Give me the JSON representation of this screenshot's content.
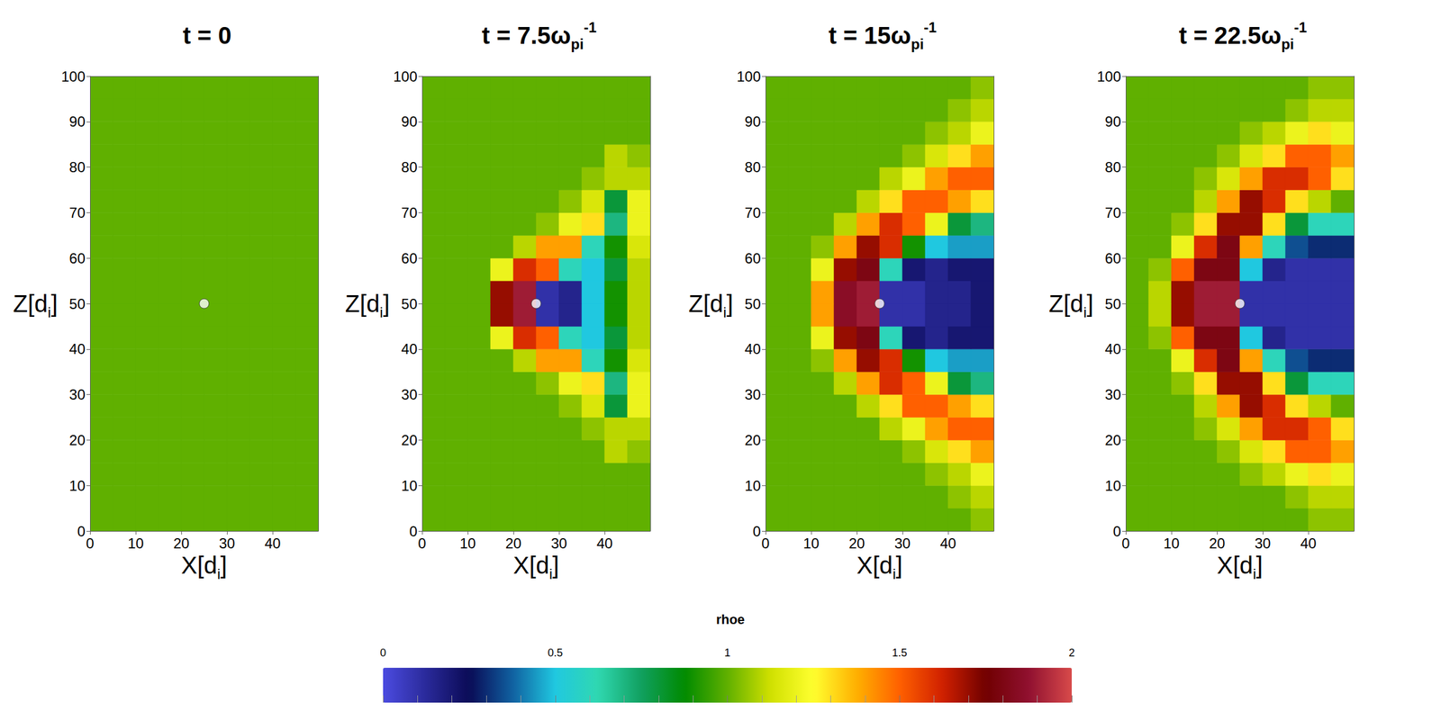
{
  "chart_data": [
    {
      "type": "heatmap",
      "title": {
        "text": "t = 0"
      },
      "x_label": {
        "text": "X[d",
        "sub": "i",
        "after": "]"
      },
      "y_label": {
        "text": "Z[d",
        "sub": "i",
        "after": "]"
      },
      "xlim": [
        0,
        50
      ],
      "xticks": [
        0,
        10,
        20,
        30,
        40
      ],
      "ylim": [
        0,
        100
      ],
      "yticks": [
        0,
        10,
        20,
        30,
        40,
        50,
        60,
        70,
        80,
        90,
        100
      ],
      "x_bins": [
        0,
        5,
        10,
        15,
        20,
        25,
        30,
        35,
        40,
        45,
        50
      ],
      "z_bins": [
        0,
        5,
        10,
        15,
        20,
        25,
        30,
        35,
        40,
        45,
        50,
        55,
        60,
        65,
        70,
        75,
        80,
        85,
        90,
        95,
        100
      ],
      "values": [
        [
          1,
          1,
          1,
          1,
          1,
          1,
          1,
          1,
          1,
          1
        ],
        [
          1,
          1,
          1,
          1,
          1,
          1,
          1,
          1,
          1,
          1
        ],
        [
          1,
          1,
          1,
          1,
          1,
          1,
          1,
          1,
          1,
          1
        ],
        [
          1,
          1,
          1,
          1,
          1,
          1,
          1,
          1,
          1,
          1
        ],
        [
          1,
          1,
          1,
          1,
          1,
          1,
          1,
          1,
          1,
          1
        ],
        [
          1,
          1,
          1,
          1,
          1,
          1,
          1,
          1,
          1,
          1
        ],
        [
          1,
          1,
          1,
          1,
          1,
          1,
          1,
          1,
          1,
          1
        ],
        [
          1,
          1,
          1,
          1,
          1,
          1,
          1,
          1,
          1,
          1
        ],
        [
          1,
          1,
          1,
          1,
          1,
          1,
          1,
          1,
          1,
          1
        ],
        [
          1,
          1,
          1,
          1,
          1,
          1,
          1,
          1,
          1,
          1
        ],
        [
          1,
          1,
          1,
          1,
          1,
          1,
          1,
          1,
          1,
          1
        ],
        [
          1,
          1,
          1,
          1,
          1,
          1,
          1,
          1,
          1,
          1
        ],
        [
          1,
          1,
          1,
          1,
          1,
          1,
          1,
          1,
          1,
          1
        ],
        [
          1,
          1,
          1,
          1,
          1,
          1,
          1,
          1,
          1,
          1
        ],
        [
          1,
          1,
          1,
          1,
          1,
          1,
          1,
          1,
          1,
          1
        ],
        [
          1,
          1,
          1,
          1,
          1,
          1,
          1,
          1,
          1,
          1
        ],
        [
          1,
          1,
          1,
          1,
          1,
          1,
          1,
          1,
          1,
          1
        ],
        [
          1,
          1,
          1,
          1,
          1,
          1,
          1,
          1,
          1,
          1
        ],
        [
          1,
          1,
          1,
          1,
          1,
          1,
          1,
          1,
          1,
          1
        ],
        [
          1,
          1,
          1,
          1,
          1,
          1,
          1,
          1,
          1,
          1
        ]
      ],
      "obstacle": {
        "x": 25,
        "z": 50
      }
    },
    {
      "type": "heatmap",
      "title": {
        "text": "t = 7.5ω",
        "sub": "pi",
        "sup": "-1"
      },
      "x_label": {
        "text": "X[d",
        "sub": "i",
        "after": "]"
      },
      "y_label": {
        "text": "Z[d",
        "sub": "i",
        "after": "]"
      },
      "xlim": [
        0,
        50
      ],
      "xticks": [
        0,
        10,
        20,
        30,
        40
      ],
      "ylim": [
        0,
        100
      ],
      "yticks": [
        0,
        10,
        20,
        30,
        40,
        50,
        60,
        70,
        80,
        90,
        100
      ],
      "x_bins": [
        0,
        5,
        10,
        15,
        20,
        25,
        30,
        35,
        40,
        45,
        50
      ],
      "z_bins": [
        0,
        5,
        10,
        15,
        20,
        25,
        30,
        35,
        40,
        45,
        50,
        55,
        60,
        65,
        70,
        75,
        80,
        85,
        90,
        95,
        100
      ],
      "values": [
        [
          1,
          1,
          1,
          1,
          1,
          1,
          1,
          1,
          1,
          1
        ],
        [
          1,
          1,
          1,
          1,
          1,
          1,
          1,
          1,
          1,
          1
        ],
        [
          1,
          1,
          1,
          1,
          1,
          1,
          1,
          1,
          1,
          1
        ],
        [
          1,
          1,
          1,
          1,
          1,
          1,
          1,
          1,
          1.1,
          1.05
        ],
        [
          1,
          1,
          1,
          1,
          1,
          1,
          1,
          1.05,
          1.1,
          1.1
        ],
        [
          1,
          1,
          1,
          1,
          1,
          1,
          1.05,
          1.15,
          0.8,
          1.2
        ],
        [
          1,
          1,
          1,
          1,
          1,
          1.05,
          1.2,
          1.3,
          0.7,
          1.2
        ],
        [
          1,
          1,
          1,
          1,
          1.1,
          1.4,
          1.4,
          0.6,
          0.9,
          1.15
        ],
        [
          1,
          1,
          1,
          1.2,
          1.6,
          1.5,
          0.6,
          0.5,
          0.8,
          1.1
        ],
        [
          1,
          1,
          1,
          1.7,
          1.9,
          0.1,
          0.15,
          0.5,
          0.9,
          1.1
        ],
        [
          1,
          1,
          1,
          1.7,
          1.9,
          0.1,
          0.15,
          0.5,
          0.9,
          1.1
        ],
        [
          1,
          1,
          1,
          1.2,
          1.6,
          1.5,
          0.6,
          0.5,
          0.8,
          1.1
        ],
        [
          1,
          1,
          1,
          1,
          1.1,
          1.4,
          1.4,
          0.6,
          0.9,
          1.15
        ],
        [
          1,
          1,
          1,
          1,
          1,
          1.05,
          1.2,
          1.3,
          0.7,
          1.2
        ],
        [
          1,
          1,
          1,
          1,
          1,
          1,
          1.05,
          1.15,
          0.8,
          1.2
        ],
        [
          1,
          1,
          1,
          1,
          1,
          1,
          1,
          1.05,
          1.1,
          1.1
        ],
        [
          1,
          1,
          1,
          1,
          1,
          1,
          1,
          1,
          1.1,
          1.05
        ],
        [
          1,
          1,
          1,
          1,
          1,
          1,
          1,
          1,
          1,
          1
        ],
        [
          1,
          1,
          1,
          1,
          1,
          1,
          1,
          1,
          1,
          1
        ],
        [
          1,
          1,
          1,
          1,
          1,
          1,
          1,
          1,
          1,
          1
        ]
      ],
      "obstacle": {
        "x": 25,
        "z": 50
      }
    },
    {
      "type": "heatmap",
      "title": {
        "text": "t = 15ω",
        "sub": "pi",
        "sup": "-1"
      },
      "x_label": {
        "text": "X[d",
        "sub": "i",
        "after": "]"
      },
      "y_label": {
        "text": "Z[d",
        "sub": "i",
        "after": "]"
      },
      "xlim": [
        0,
        50
      ],
      "xticks": [
        0,
        10,
        20,
        30,
        40
      ],
      "ylim": [
        0,
        100
      ],
      "yticks": [
        0,
        10,
        20,
        30,
        40,
        50,
        60,
        70,
        80,
        90,
        100
      ],
      "x_bins": [
        0,
        5,
        10,
        15,
        20,
        25,
        30,
        35,
        40,
        45,
        50
      ],
      "z_bins": [
        0,
        5,
        10,
        15,
        20,
        25,
        30,
        35,
        40,
        45,
        50,
        55,
        60,
        65,
        70,
        75,
        80,
        85,
        90,
        95,
        100
      ],
      "values": [
        [
          1,
          1,
          1,
          1,
          1,
          1,
          1,
          1,
          1,
          1.05
        ],
        [
          1,
          1,
          1,
          1,
          1,
          1,
          1,
          1,
          1.05,
          1.1
        ],
        [
          1,
          1,
          1,
          1,
          1,
          1,
          1,
          1.05,
          1.1,
          1.2
        ],
        [
          1,
          1,
          1,
          1,
          1,
          1,
          1.05,
          1.15,
          1.3,
          1.4
        ],
        [
          1,
          1,
          1,
          1,
          1,
          1.1,
          1.2,
          1.4,
          1.5,
          1.5
        ],
        [
          1,
          1,
          1,
          1,
          1.1,
          1.3,
          1.5,
          1.5,
          1.4,
          1.3
        ],
        [
          1,
          1,
          1,
          1.1,
          1.4,
          1.6,
          1.5,
          1.2,
          0.8,
          0.7
        ],
        [
          1,
          1,
          1.05,
          1.4,
          1.7,
          1.6,
          0.9,
          0.5,
          0.45,
          0.45
        ],
        [
          1,
          1,
          1.2,
          1.7,
          1.8,
          0.6,
          0.2,
          0.15,
          0.2,
          0.2
        ],
        [
          1,
          1,
          1.4,
          1.85,
          1.9,
          0.1,
          0.1,
          0.15,
          0.15,
          0.2
        ],
        [
          1,
          1,
          1.4,
          1.85,
          1.9,
          0.1,
          0.1,
          0.15,
          0.15,
          0.2
        ],
        [
          1,
          1,
          1.2,
          1.7,
          1.8,
          0.6,
          0.2,
          0.15,
          0.2,
          0.2
        ],
        [
          1,
          1,
          1.05,
          1.4,
          1.7,
          1.6,
          0.9,
          0.5,
          0.45,
          0.45
        ],
        [
          1,
          1,
          1,
          1.1,
          1.4,
          1.6,
          1.5,
          1.2,
          0.8,
          0.7
        ],
        [
          1,
          1,
          1,
          1,
          1.1,
          1.3,
          1.5,
          1.5,
          1.4,
          1.3
        ],
        [
          1,
          1,
          1,
          1,
          1,
          1.1,
          1.2,
          1.4,
          1.5,
          1.5
        ],
        [
          1,
          1,
          1,
          1,
          1,
          1,
          1.05,
          1.15,
          1.3,
          1.4
        ],
        [
          1,
          1,
          1,
          1,
          1,
          1,
          1,
          1.05,
          1.1,
          1.2
        ],
        [
          1,
          1,
          1,
          1,
          1,
          1,
          1,
          1,
          1.05,
          1.1
        ],
        [
          1,
          1,
          1,
          1,
          1,
          1,
          1,
          1,
          1,
          1.05
        ]
      ],
      "obstacle": {
        "x": 25,
        "z": 50
      }
    },
    {
      "type": "heatmap",
      "title": {
        "text": "t = 22.5ω",
        "sub": "pi",
        "sup": "-1"
      },
      "x_label": {
        "text": "X[d",
        "sub": "i",
        "after": "]"
      },
      "y_label": {
        "text": "Z[d",
        "sub": "i",
        "after": "]"
      },
      "xlim": [
        0,
        50
      ],
      "xticks": [
        0,
        10,
        20,
        30,
        40
      ],
      "ylim": [
        0,
        100
      ],
      "yticks": [
        0,
        10,
        20,
        30,
        40,
        50,
        60,
        70,
        80,
        90,
        100
      ],
      "x_bins": [
        0,
        5,
        10,
        15,
        20,
        25,
        30,
        35,
        40,
        45,
        50
      ],
      "z_bins": [
        0,
        5,
        10,
        15,
        20,
        25,
        30,
        35,
        40,
        45,
        50,
        55,
        60,
        65,
        70,
        75,
        80,
        85,
        90,
        95,
        100
      ],
      "values": [
        [
          1,
          1,
          1,
          1,
          1,
          1,
          1,
          1,
          1.05,
          1.05
        ],
        [
          1,
          1,
          1,
          1,
          1,
          1,
          1,
          1.05,
          1.1,
          1.1
        ],
        [
          1,
          1,
          1,
          1,
          1,
          1.05,
          1.1,
          1.2,
          1.3,
          1.2
        ],
        [
          1,
          1,
          1,
          1,
          1.05,
          1.15,
          1.3,
          1.5,
          1.5,
          1.4
        ],
        [
          1,
          1,
          1,
          1.05,
          1.15,
          1.4,
          1.6,
          1.6,
          1.5,
          1.3
        ],
        [
          1,
          1,
          1,
          1.1,
          1.4,
          1.7,
          1.6,
          1.3,
          1.1,
          1
        ],
        [
          1,
          1,
          1.05,
          1.3,
          1.7,
          1.7,
          1.3,
          0.8,
          0.6,
          0.6
        ],
        [
          1,
          1,
          1.2,
          1.6,
          1.8,
          1.4,
          0.6,
          0.35,
          0.3,
          0.3
        ],
        [
          1,
          1.05,
          1.5,
          1.8,
          1.8,
          0.5,
          0.15,
          0.1,
          0.1,
          0.1
        ],
        [
          1,
          1.1,
          1.7,
          1.9,
          1.9,
          0.1,
          0.1,
          0.1,
          0.1,
          0.1
        ],
        [
          1,
          1.1,
          1.7,
          1.9,
          1.9,
          0.1,
          0.1,
          0.1,
          0.1,
          0.1
        ],
        [
          1,
          1.05,
          1.5,
          1.8,
          1.8,
          0.5,
          0.15,
          0.1,
          0.1,
          0.1
        ],
        [
          1,
          1,
          1.2,
          1.6,
          1.8,
          1.4,
          0.6,
          0.35,
          0.3,
          0.3
        ],
        [
          1,
          1,
          1.05,
          1.3,
          1.7,
          1.7,
          1.3,
          0.8,
          0.6,
          0.6
        ],
        [
          1,
          1,
          1,
          1.1,
          1.4,
          1.7,
          1.6,
          1.3,
          1.1,
          1
        ],
        [
          1,
          1,
          1,
          1.05,
          1.15,
          1.4,
          1.6,
          1.6,
          1.5,
          1.3
        ],
        [
          1,
          1,
          1,
          1,
          1.05,
          1.15,
          1.3,
          1.5,
          1.5,
          1.4
        ],
        [
          1,
          1,
          1,
          1,
          1,
          1.05,
          1.1,
          1.2,
          1.3,
          1.2
        ],
        [
          1,
          1,
          1,
          1,
          1,
          1,
          1,
          1.05,
          1.1,
          1.1
        ],
        [
          1,
          1,
          1,
          1,
          1,
          1,
          1,
          1,
          1.05,
          1.05
        ]
      ],
      "obstacle": {
        "x": 25,
        "z": 50
      }
    }
  ],
  "colorbar": {
    "title": "rhoe",
    "range": [
      0,
      2
    ],
    "ticks": [
      0,
      0.5,
      1,
      1.5,
      2
    ]
  }
}
